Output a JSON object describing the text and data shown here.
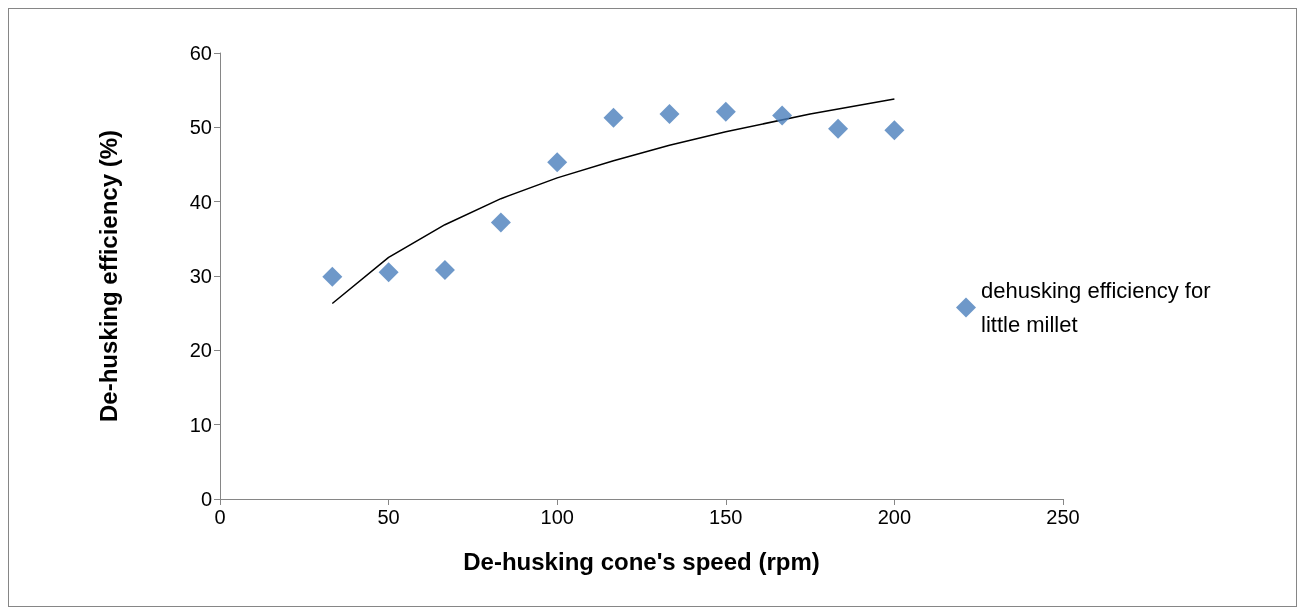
{
  "chart_data": {
    "type": "scatter",
    "xlabel": "De-husking cone's speed (rpm)",
    "ylabel": "De-husking efficiency (%)",
    "xlim": [
      0,
      250
    ],
    "xticks": [
      0,
      50,
      100,
      150,
      200,
      250
    ],
    "ylim": [
      0,
      60
    ],
    "yticks": [
      0,
      10,
      20,
      30,
      40,
      50,
      60
    ],
    "grid": false,
    "legend": "right",
    "marker": "diamond",
    "series": [
      {
        "name": "dehusking efficiency for little millet",
        "color": "#4a7ebb",
        "x": [
          33.3,
          50,
          66.7,
          83.3,
          100,
          116.7,
          133.3,
          150,
          166.7,
          183.3,
          200
        ],
        "values": [
          29.9,
          30.5,
          30.8,
          37.2,
          45.3,
          51.3,
          51.8,
          52.1,
          51.6,
          49.8,
          49.6
        ]
      },
      {
        "type": "line",
        "color": "#000000",
        "marker": "none",
        "x": [
          33.3,
          50,
          66.7,
          83.3,
          100,
          116.7,
          133.3,
          150,
          175,
          200
        ],
        "values": [
          26.3,
          32.5,
          36.9,
          40.4,
          43.2,
          45.5,
          47.6,
          49.4,
          51.8,
          53.8
        ]
      }
    ]
  }
}
